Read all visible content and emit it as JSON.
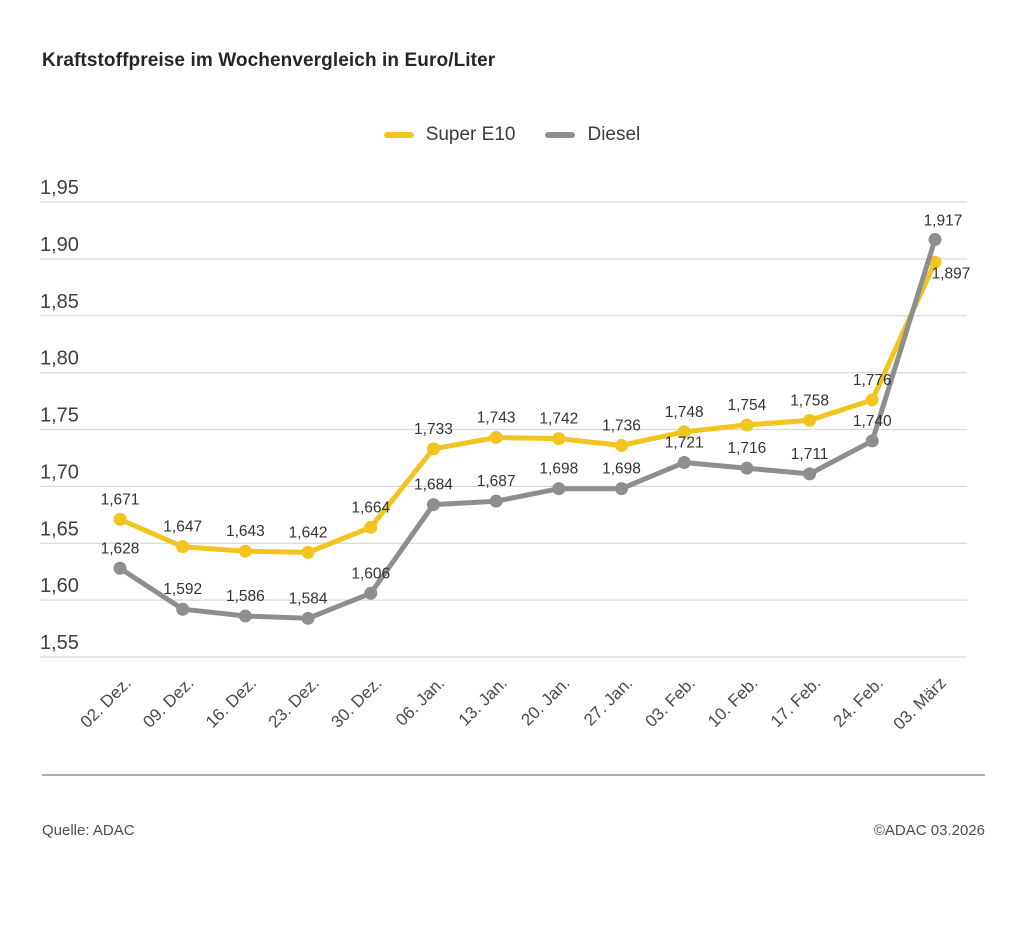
{
  "title": "Kraftstoffpreise im Wochenvergleich in Euro/Liter",
  "legend": {
    "items": [
      {
        "label": "Super E10",
        "color": "#F2C420"
      },
      {
        "label": "Diesel",
        "color": "#8E8E8E"
      }
    ]
  },
  "footer": {
    "source": "Quelle: ADAC",
    "copyright": "©ADAC 03.2026"
  },
  "chart_data": {
    "type": "line",
    "title": "Kraftstoffpreise im Wochenvergleich in Euro/Liter",
    "xlabel": "",
    "ylabel": "Euro/Liter",
    "ylim": [
      1.55,
      1.95
    ],
    "grid": true,
    "legend_position": "top-center",
    "y_ticks": [
      "1,95",
      "1,90",
      "1,85",
      "1,80",
      "1,75",
      "1,70",
      "1,65",
      "1,60",
      "1,55"
    ],
    "categories": [
      "02. Dez.",
      "09. Dez.",
      "16. Dez.",
      "23. Dez.",
      "30. Dez.",
      "06. Jan.",
      "13. Jan.",
      "20. Jan.",
      "27. Jan.",
      "03. Feb.",
      "10. Feb.",
      "17. Feb.",
      "24. Feb.",
      "03. März"
    ],
    "series": [
      {
        "name": "Super E10",
        "color": "#F2C420",
        "values": [
          1.671,
          1.647,
          1.643,
          1.642,
          1.664,
          1.733,
          1.743,
          1.742,
          1.736,
          1.748,
          1.754,
          1.758,
          1.776,
          1.897
        ],
        "label_overrides": {
          "13": {
            "dx": 16,
            "dy": 16
          }
        }
      },
      {
        "name": "Diesel",
        "color": "#8E8E8E",
        "values": [
          1.628,
          1.592,
          1.586,
          1.584,
          1.606,
          1.684,
          1.687,
          1.698,
          1.698,
          1.721,
          1.716,
          1.711,
          1.74,
          1.917
        ],
        "label_overrides": {
          "13": {
            "dx": 8,
            "dy": -14
          }
        }
      }
    ]
  }
}
